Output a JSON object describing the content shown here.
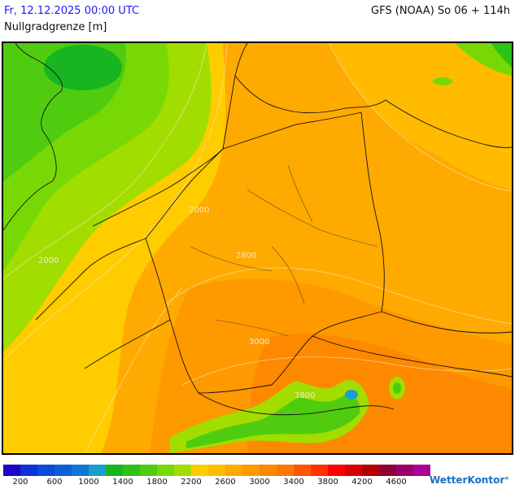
{
  "header": {
    "date": "Fr, 12.12.2025 00:00 UTC",
    "model": "GFS (NOAA) So 06 + 114h",
    "parameter": "Nullgradgrenze [m]"
  },
  "map": {
    "contour_labels": [
      "2000",
      "2000",
      "2800",
      "3000",
      "3800"
    ]
  },
  "legend": {
    "colors": [
      "#1d06c7",
      "#0f32d8",
      "#0a4bd7",
      "#0b5fd6",
      "#1177d4",
      "#17a0cf",
      "#17b51f",
      "#2dc215",
      "#4fcc10",
      "#78d806",
      "#a2dd00",
      "#ffcc00",
      "#ffbb00",
      "#ffaa00",
      "#ff9900",
      "#fe8800",
      "#fe7700",
      "#fe5500",
      "#ff3300",
      "#ff0000",
      "#d90000",
      "#b20000",
      "#8f0033",
      "#990066",
      "#aa0099"
    ],
    "labels": [
      "200",
      "600",
      "1000",
      "1400",
      "1800",
      "2200",
      "2600",
      "3000",
      "3400",
      "3800",
      "4200",
      "4600"
    ]
  },
  "logo": {
    "text": "WetterKontor",
    "mark": "°"
  }
}
